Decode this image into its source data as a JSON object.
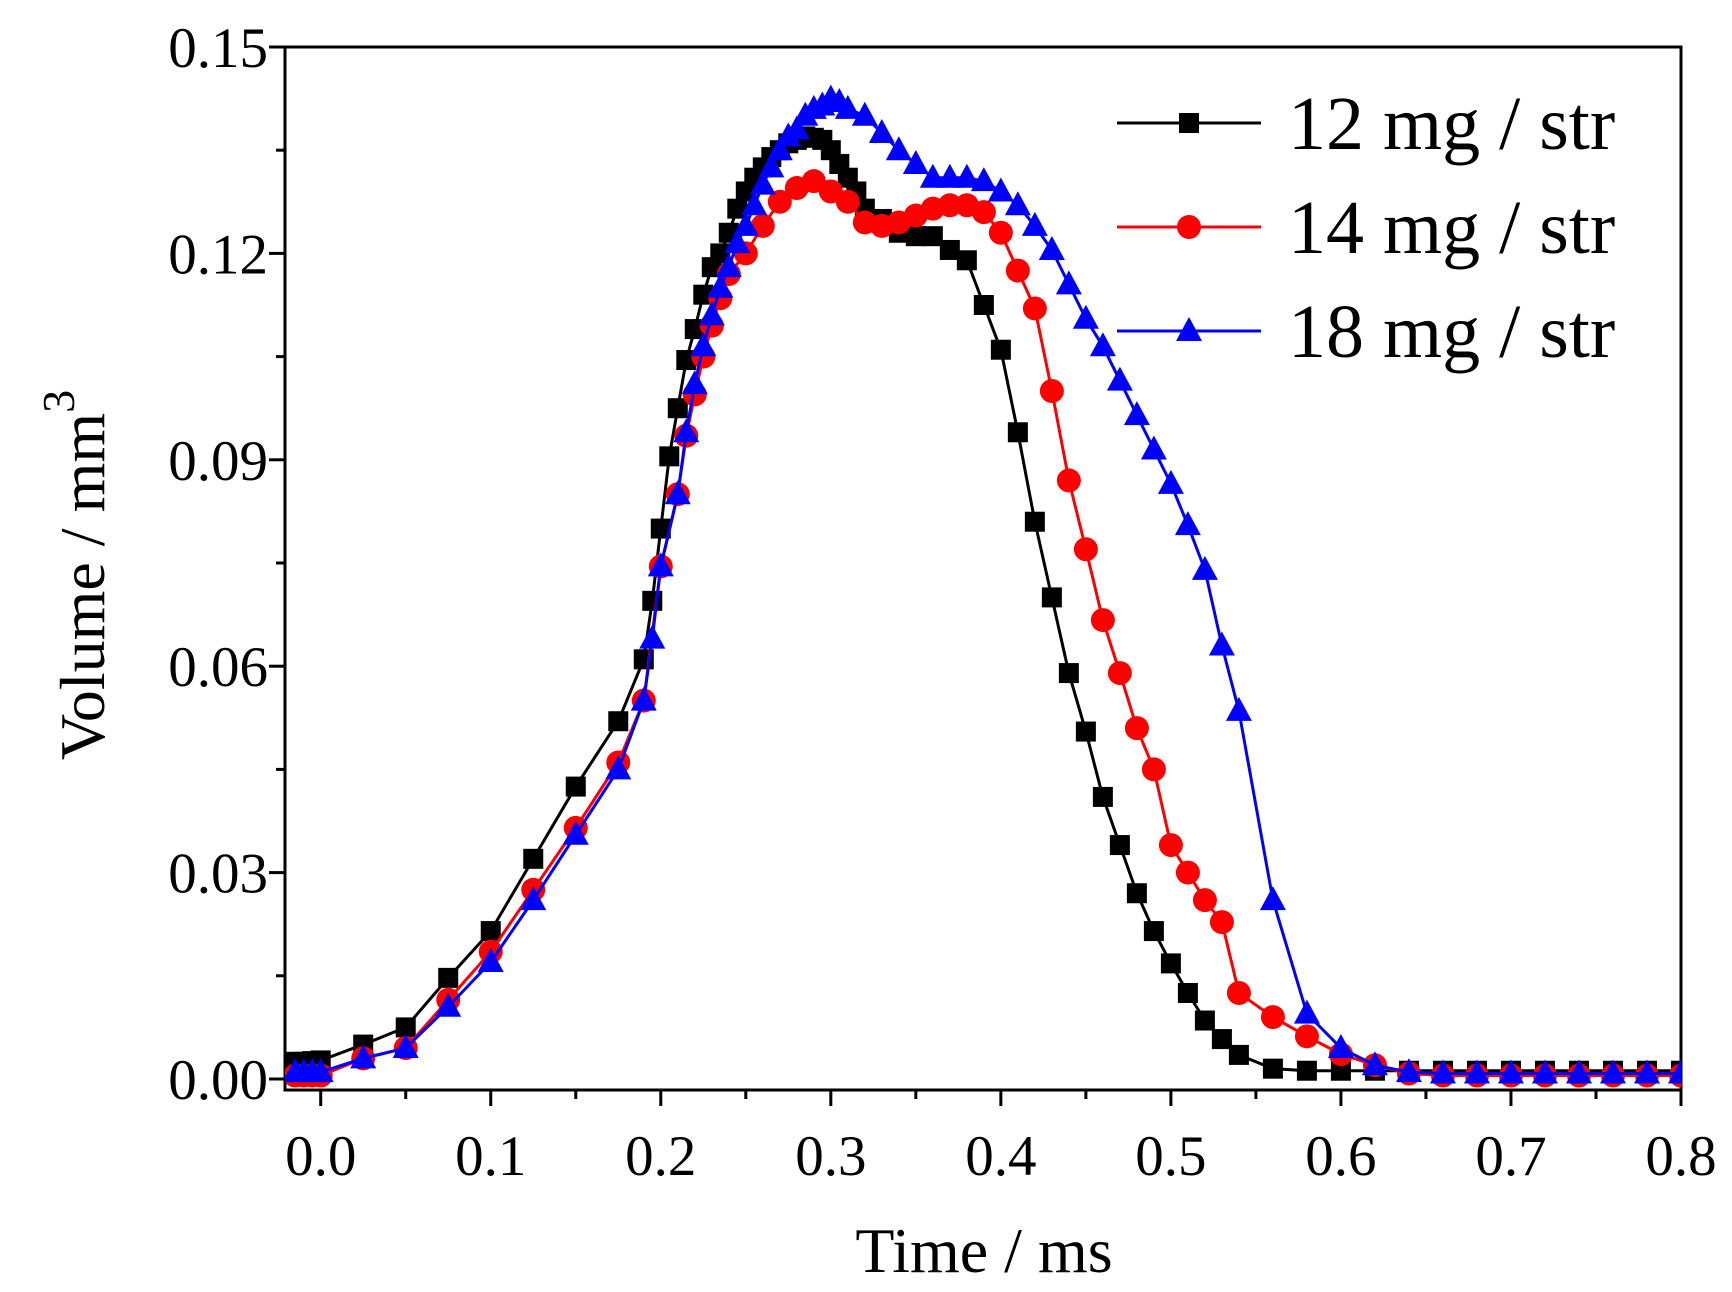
{
  "chart_data": {
    "type": "line",
    "x_label": "Time / ms",
    "y_label": "Volume / mm",
    "y_label_superscript": "3",
    "xlim": [
      -0.021,
      0.8
    ],
    "ylim": [
      -0.0016,
      0.15
    ],
    "xticks": [
      {
        "value": 0,
        "label": "0.0"
      },
      0.1,
      0.2,
      0.3,
      0.4,
      0.5,
      0.6,
      0.7,
      0.8
    ],
    "xminorticks": [
      0.05,
      0.15,
      0.25,
      0.35,
      0.45,
      0.55,
      0.65,
      0.75
    ],
    "yticks": [
      {
        "value": 0,
        "label": "0.00"
      },
      {
        "value": 0.03,
        "label": "0.03"
      },
      {
        "value": 0.06,
        "label": "0.06"
      },
      {
        "value": 0.09,
        "label": "0.09"
      },
      {
        "value": 0.12,
        "label": "0.12"
      },
      {
        "value": 0.15,
        "label": "0.15"
      }
    ],
    "yminorticks": [
      0.015,
      0.045,
      0.075,
      0.105,
      0.135
    ],
    "legend": "upper right",
    "series": [
      {
        "name": "12 mg / str",
        "color": "#000000",
        "marker": "square",
        "x": [
          -0.015,
          -0.01,
          -0.005,
          0,
          0.025,
          0.05,
          0.075,
          0.1,
          0.125,
          0.15,
          0.175,
          0.19,
          0.195,
          0.2,
          0.205,
          0.21,
          0.215,
          0.22,
          0.225,
          0.23,
          0.235,
          0.24,
          0.245,
          0.25,
          0.255,
          0.26,
          0.265,
          0.27,
          0.275,
          0.28,
          0.285,
          0.29,
          0.295,
          0.3,
          0.305,
          0.31,
          0.315,
          0.32,
          0.33,
          0.34,
          0.35,
          0.36,
          0.37,
          0.38,
          0.39,
          0.4,
          0.41,
          0.42,
          0.43,
          0.44,
          0.45,
          0.46,
          0.47,
          0.48,
          0.49,
          0.5,
          0.51,
          0.52,
          0.53,
          0.54,
          0.56,
          0.58,
          0.6,
          0.62,
          0.64,
          0.66,
          0.68,
          0.7,
          0.72,
          0.74,
          0.76,
          0.78,
          0.8
        ],
        "values": [
          0.0025,
          0.0025,
          0.0026,
          0.0027,
          0.005,
          0.0075,
          0.0147,
          0.0215,
          0.032,
          0.0425,
          0.052,
          0.061,
          0.0695,
          0.08,
          0.0905,
          0.0975,
          0.1045,
          0.109,
          0.114,
          0.118,
          0.12,
          0.123,
          0.1265,
          0.129,
          0.131,
          0.1325,
          0.134,
          0.135,
          0.136,
          0.1365,
          0.137,
          0.1368,
          0.1365,
          0.135,
          0.133,
          0.131,
          0.129,
          0.1265,
          0.125,
          0.123,
          0.1225,
          0.1225,
          0.1205,
          0.119,
          0.1125,
          0.106,
          0.094,
          0.081,
          0.07,
          0.059,
          0.0505,
          0.041,
          0.034,
          0.027,
          0.0215,
          0.0168,
          0.0125,
          0.0085,
          0.0058,
          0.0035,
          0.0015,
          0.0012,
          0.0012,
          0.0012,
          0.0012,
          0.0012,
          0.0012,
          0.0012,
          0.0012,
          0.0012,
          0.0012,
          0.0012,
          0.0012
        ]
      },
      {
        "name": "14 mg / str",
        "color": "#ff0000",
        "marker": "circle",
        "x": [
          -0.015,
          -0.01,
          -0.005,
          0,
          0.025,
          0.05,
          0.075,
          0.1,
          0.125,
          0.15,
          0.175,
          0.19,
          0.2,
          0.21,
          0.215,
          0.22,
          0.225,
          0.23,
          0.235,
          0.24,
          0.25,
          0.26,
          0.27,
          0.28,
          0.29,
          0.3,
          0.31,
          0.32,
          0.33,
          0.34,
          0.35,
          0.36,
          0.37,
          0.38,
          0.39,
          0.4,
          0.41,
          0.42,
          0.43,
          0.44,
          0.45,
          0.46,
          0.47,
          0.48,
          0.49,
          0.5,
          0.51,
          0.52,
          0.53,
          0.54,
          0.56,
          0.58,
          0.6,
          0.62,
          0.64,
          0.66,
          0.68,
          0.7,
          0.72,
          0.74,
          0.76,
          0.78,
          0.8
        ],
        "values": [
          0.0005,
          0.0005,
          0.0005,
          0.0005,
          0.003,
          0.0045,
          0.0115,
          0.0185,
          0.0275,
          0.0365,
          0.046,
          0.055,
          0.0745,
          0.085,
          0.0935,
          0.0995,
          0.105,
          0.1095,
          0.1135,
          0.117,
          0.12,
          0.124,
          0.1275,
          0.1295,
          0.1305,
          0.129,
          0.1275,
          0.1245,
          0.124,
          0.1245,
          0.1255,
          0.1265,
          0.127,
          0.127,
          0.126,
          0.123,
          0.1175,
          0.112,
          0.1,
          0.087,
          0.077,
          0.0667,
          0.059,
          0.051,
          0.045,
          0.034,
          0.03,
          0.026,
          0.0228,
          0.0125,
          0.009,
          0.0062,
          0.0036,
          0.002,
          0.0008,
          0.0005,
          0.0005,
          0.0005,
          0.0005,
          0.0005,
          0.0005,
          0.0005,
          0.0005
        ]
      },
      {
        "name": "18 mg / str",
        "color": "#0000ff",
        "marker": "triangle",
        "x": [
          -0.015,
          -0.01,
          -0.005,
          0,
          0.025,
          0.05,
          0.075,
          0.1,
          0.125,
          0.15,
          0.175,
          0.19,
          0.195,
          0.2,
          0.21,
          0.215,
          0.22,
          0.225,
          0.23,
          0.235,
          0.24,
          0.245,
          0.25,
          0.255,
          0.26,
          0.265,
          0.27,
          0.275,
          0.28,
          0.285,
          0.29,
          0.295,
          0.3,
          0.305,
          0.31,
          0.32,
          0.33,
          0.34,
          0.35,
          0.36,
          0.37,
          0.38,
          0.39,
          0.4,
          0.41,
          0.42,
          0.43,
          0.44,
          0.45,
          0.46,
          0.47,
          0.48,
          0.49,
          0.5,
          0.51,
          0.52,
          0.53,
          0.54,
          0.56,
          0.58,
          0.6,
          0.62,
          0.64,
          0.66,
          0.68,
          0.7,
          0.72,
          0.74,
          0.76,
          0.78,
          0.8
        ],
        "values": [
          0.001,
          0.001,
          0.001,
          0.001,
          0.003,
          0.0045,
          0.0105,
          0.017,
          0.026,
          0.0355,
          0.045,
          0.055,
          0.064,
          0.0745,
          0.085,
          0.094,
          0.101,
          0.1065,
          0.111,
          0.115,
          0.118,
          0.1215,
          0.124,
          0.127,
          0.13,
          0.1325,
          0.135,
          0.137,
          0.138,
          0.14,
          0.141,
          0.1415,
          0.1425,
          0.142,
          0.141,
          0.14,
          0.1375,
          0.135,
          0.133,
          0.131,
          0.131,
          0.131,
          0.1305,
          0.129,
          0.127,
          0.124,
          0.1205,
          0.1155,
          0.1105,
          0.1065,
          0.1015,
          0.0965,
          0.0915,
          0.0865,
          0.0805,
          0.074,
          0.063,
          0.0535,
          0.026,
          0.0095,
          0.0045,
          0.002,
          0.001,
          0.0008,
          0.0008,
          0.0008,
          0.0008,
          0.0008,
          0.0008,
          0.0008,
          0.0008
        ]
      }
    ]
  }
}
